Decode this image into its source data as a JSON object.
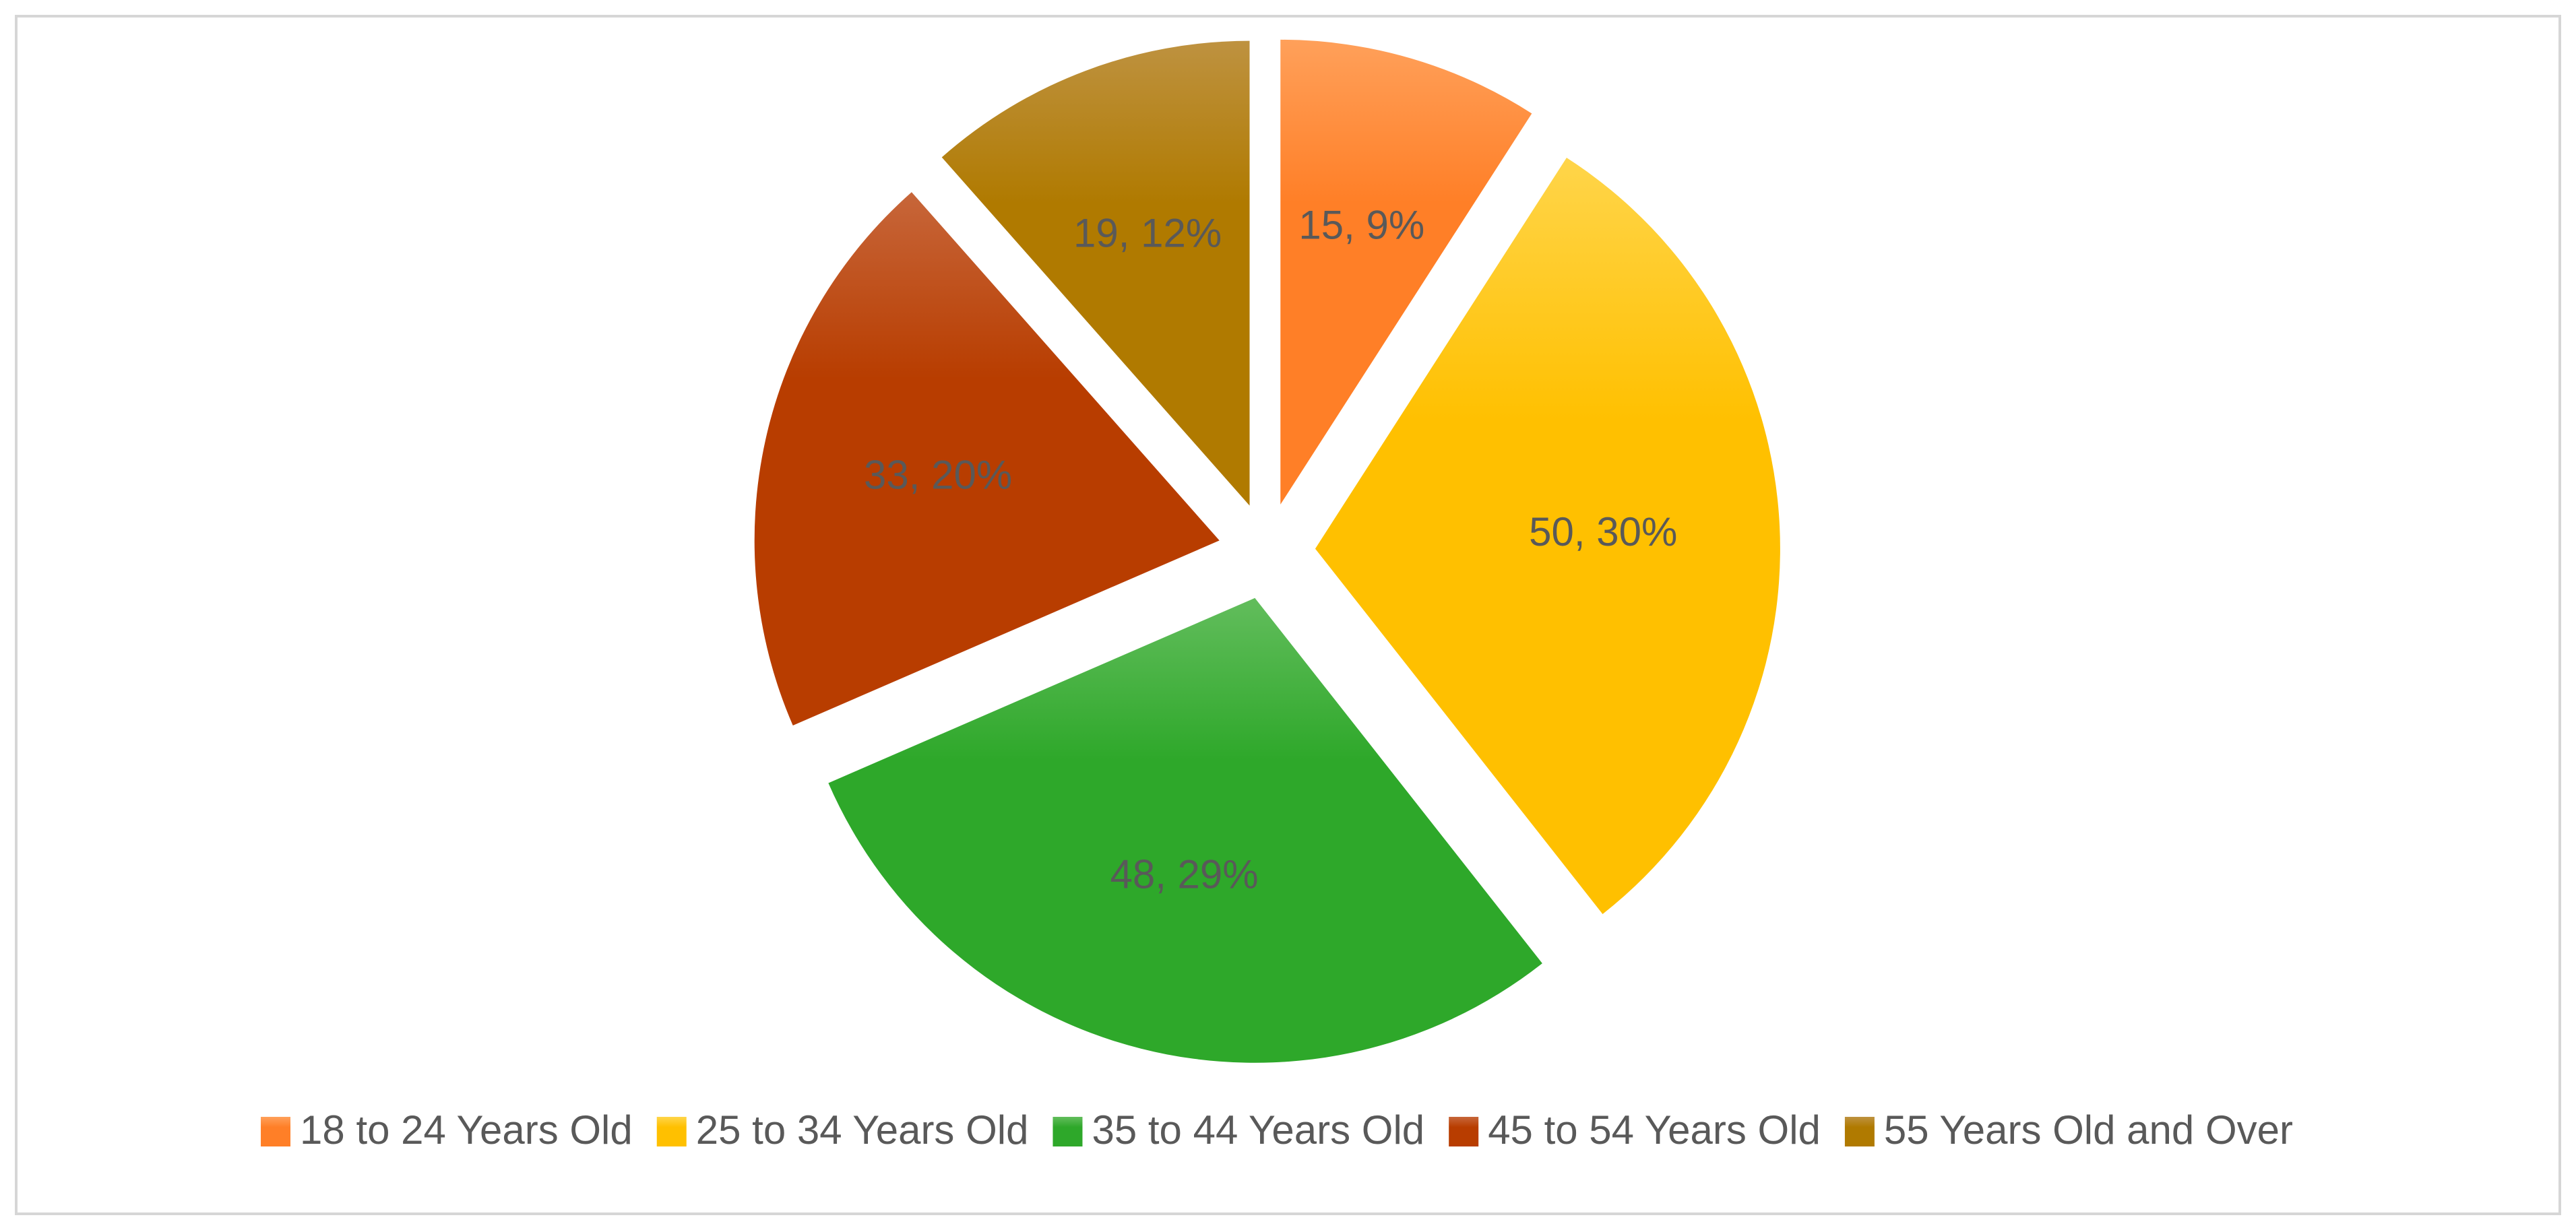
{
  "chart_data": {
    "type": "pie",
    "title": "",
    "legend_position": "bottom",
    "data_label_format": "{value}, {percent}",
    "slices": [
      {
        "name": "18 to 24 Years Old",
        "value": 15,
        "percent": "9%",
        "color": "#ff7f27",
        "highlight": "#ffa05a"
      },
      {
        "name": "25 to 34 Years Old",
        "value": 50,
        "percent": "30%",
        "color": "#ffc000",
        "highlight": "#ffd54a"
      },
      {
        "name": "35 to 44 Years Old",
        "value": 48,
        "percent": "29%",
        "color": "#2ea82a",
        "highlight": "#62bd5c"
      },
      {
        "name": "45 to 54 Years Old",
        "value": 33,
        "percent": "20%",
        "color": "#b83d00",
        "highlight": "#c7663a"
      },
      {
        "name": "55 Years Old and Over",
        "value": 19,
        "percent": "12%",
        "color": "#b07a00",
        "highlight": "#be9240"
      }
    ]
  }
}
